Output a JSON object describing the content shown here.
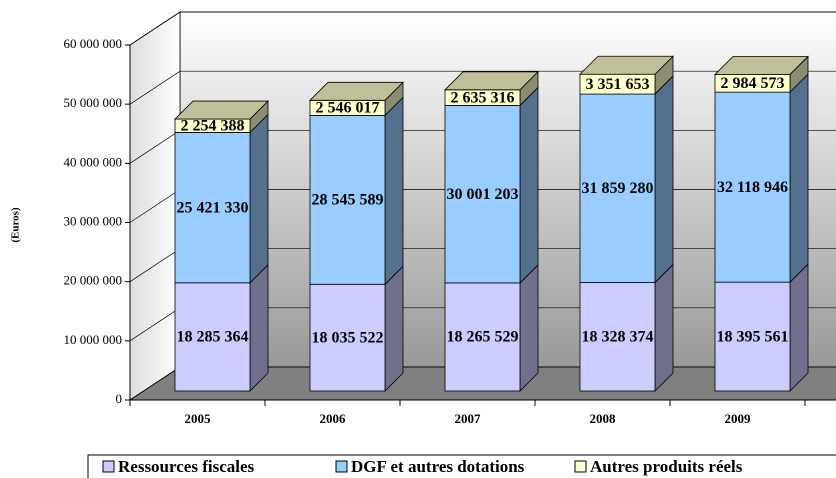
{
  "chart_data": {
    "type": "bar3d-stacked",
    "y_axis_label": "(Euros)",
    "categories": [
      "2005",
      "2006",
      "2007",
      "2008",
      "2009"
    ],
    "series": [
      {
        "name": "Ressources fiscales",
        "color": "#ccccff",
        "values": [
          18285364,
          18035522,
          18265529,
          18328374,
          18395561
        ],
        "value_labels": [
          "18 285 364",
          "18 035 522",
          "18 265 529",
          "18 328 374",
          "18 395 561"
        ]
      },
      {
        "name": "DGF et autres dotations",
        "color": "#99ccff",
        "values": [
          25421330,
          28545589,
          30001203,
          31859280,
          32118946
        ],
        "value_labels": [
          "25 421 330",
          "28 545 589",
          "30 001 203",
          "31 859 280",
          "32 118 946"
        ]
      },
      {
        "name": "Autres produits réels",
        "color": "#ffffcc",
        "values": [
          2254388,
          2546017,
          2635316,
          3351653,
          2984573
        ],
        "value_labels": [
          "2 254 388",
          "2 546 017",
          "2 635 316",
          "3 351 653",
          "2 984 573"
        ]
      }
    ],
    "ylim": [
      0,
      60000000
    ],
    "yticks": [
      {
        "value": 0,
        "label": "0"
      },
      {
        "value": 10000000,
        "label": "10 000 000"
      },
      {
        "value": 20000000,
        "label": "20 000 000"
      },
      {
        "value": 30000000,
        "label": "30 000 000"
      },
      {
        "value": 40000000,
        "label": "40 000 000"
      },
      {
        "value": 50000000,
        "label": "50 000 000"
      },
      {
        "value": 60000000,
        "label": "60 000 000"
      }
    ],
    "grid": true
  }
}
